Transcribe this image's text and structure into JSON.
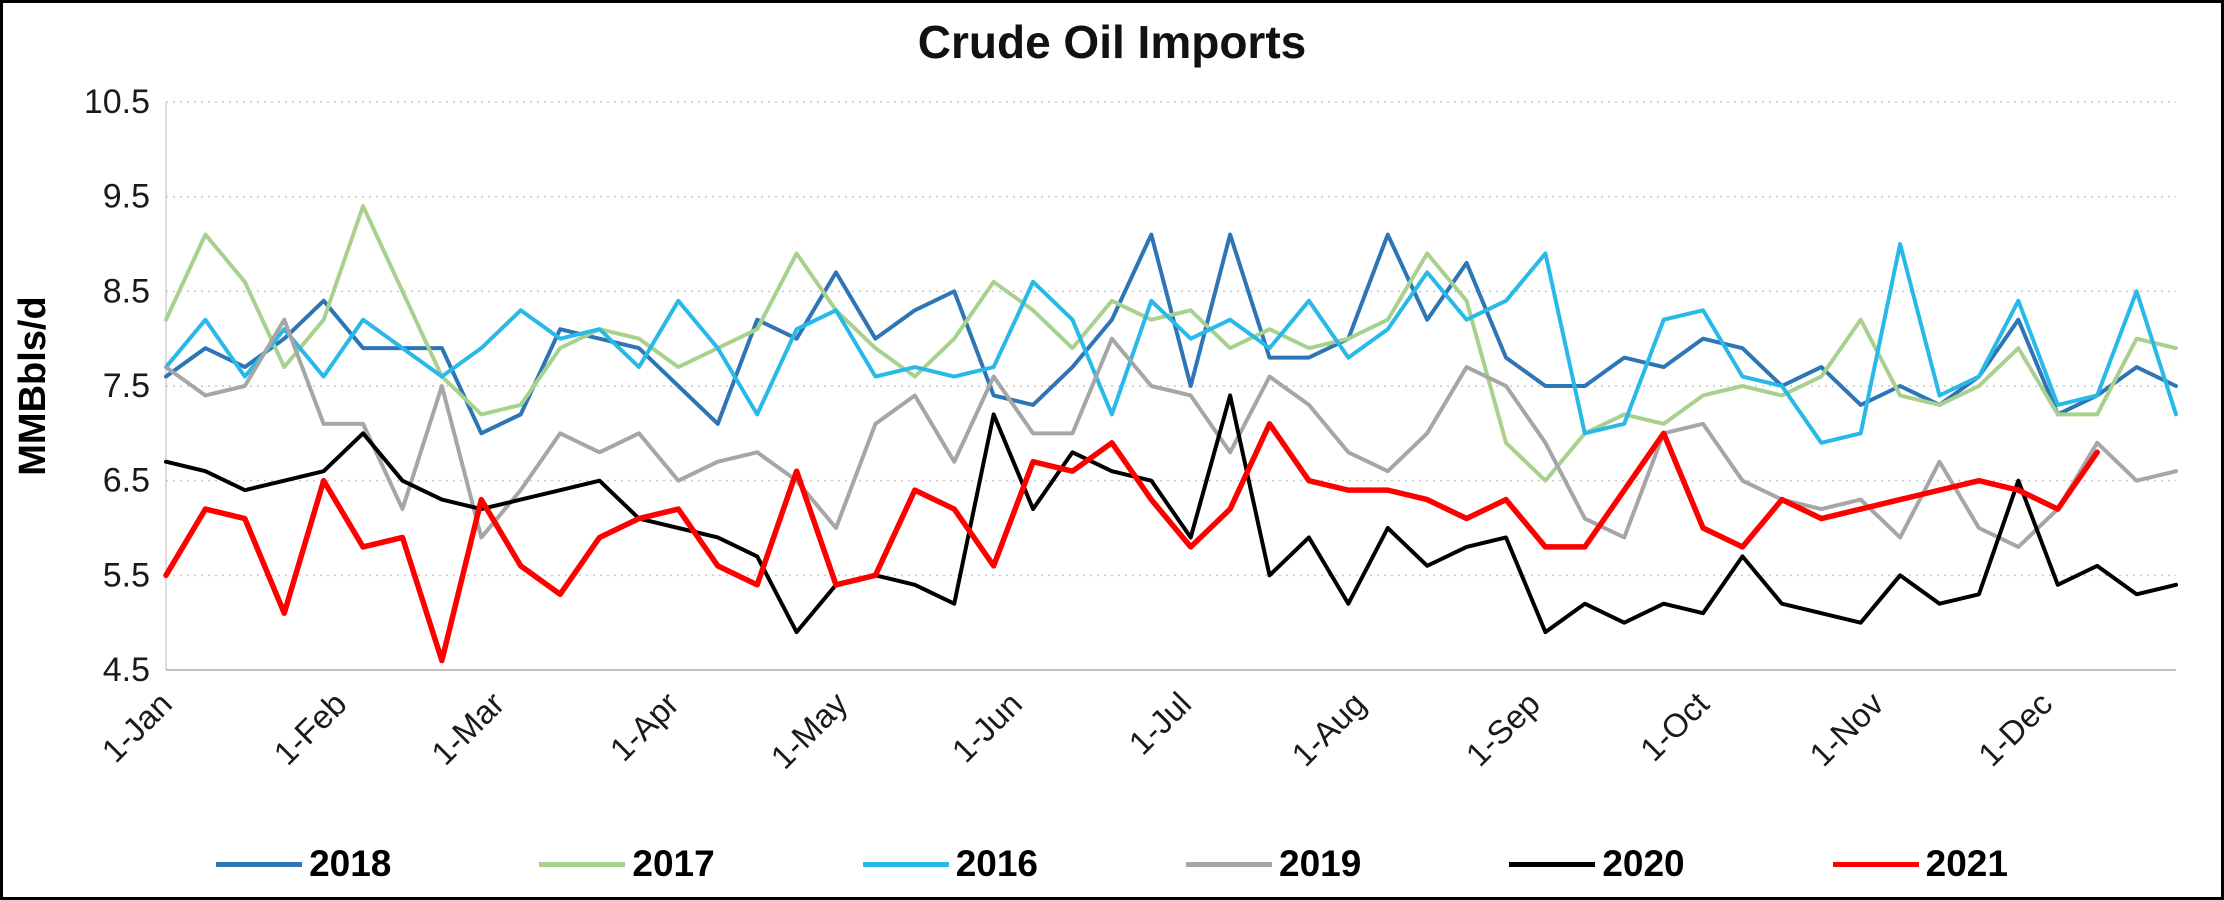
{
  "chart_data": {
    "type": "line",
    "title": "Crude Oil Imports",
    "xlabel": "",
    "ylabel": "MMBbls/d",
    "ylim": [
      4.5,
      10.5
    ],
    "ytick_step": 1.0,
    "grid": "horizontal-dotted",
    "legend_position": "bottom",
    "weeks_per_year": 52,
    "x_tick_labels": [
      "1-Jan",
      "1-Feb",
      "1-Mar",
      "1-Apr",
      "1-May",
      "1-Jun",
      "1-Jul",
      "1-Aug",
      "1-Sep",
      "1-Oct",
      "1-Nov",
      "1-Dec"
    ],
    "x_tick_week_positions": [
      0,
      4.43,
      8.43,
      12.86,
      17.14,
      21.57,
      25.86,
      30.29,
      34.71,
      39.0,
      43.43,
      47.71
    ],
    "series": [
      {
        "name": "2018",
        "color": "#2E75B6",
        "line_width": 4,
        "values": [
          7.6,
          7.9,
          7.7,
          8.0,
          8.4,
          7.9,
          7.9,
          7.9,
          7.0,
          7.2,
          8.1,
          8.0,
          7.9,
          7.5,
          7.1,
          8.2,
          8.0,
          8.7,
          8.0,
          8.3,
          8.5,
          7.4,
          7.3,
          7.7,
          8.2,
          9.1,
          7.5,
          9.1,
          7.8,
          7.8,
          8.0,
          9.1,
          8.2,
          8.8,
          7.8,
          7.5,
          7.5,
          7.8,
          7.7,
          8.0,
          7.9,
          7.5,
          7.7,
          7.3,
          7.5,
          7.3,
          7.6,
          8.2,
          7.2,
          7.4,
          7.7,
          7.5
        ]
      },
      {
        "name": "2017",
        "color": "#A9D18E",
        "line_width": 4,
        "values": [
          8.2,
          9.1,
          8.6,
          7.7,
          8.2,
          9.4,
          8.5,
          7.6,
          7.2,
          7.3,
          7.9,
          8.1,
          8.0,
          7.7,
          7.9,
          8.1,
          8.9,
          8.3,
          7.9,
          7.6,
          8.0,
          8.6,
          8.3,
          7.9,
          8.4,
          8.2,
          8.3,
          7.9,
          8.1,
          7.9,
          8.0,
          8.2,
          8.9,
          8.4,
          6.9,
          6.5,
          7.0,
          7.2,
          7.1,
          7.4,
          7.5,
          7.4,
          7.6,
          8.2,
          7.4,
          7.3,
          7.5,
          7.9,
          7.2,
          7.2,
          8.0,
          7.9
        ]
      },
      {
        "name": "2016",
        "color": "#29B9E8",
        "line_width": 4,
        "values": [
          7.7,
          8.2,
          7.6,
          8.1,
          7.6,
          8.2,
          7.9,
          7.6,
          7.9,
          8.3,
          8.0,
          8.1,
          7.7,
          8.4,
          7.9,
          7.2,
          8.1,
          8.3,
          7.6,
          7.7,
          7.6,
          7.7,
          8.6,
          8.2,
          7.2,
          8.4,
          8.0,
          8.2,
          7.9,
          8.4,
          7.8,
          8.1,
          8.7,
          8.2,
          8.4,
          8.9,
          7.0,
          7.1,
          8.2,
          8.3,
          7.6,
          7.5,
          6.9,
          7.0,
          9.0,
          7.4,
          7.6,
          8.4,
          7.3,
          7.4,
          8.5,
          7.2
        ]
      },
      {
        "name": "2019",
        "color": "#A6A6A6",
        "line_width": 4,
        "values": [
          7.7,
          7.4,
          7.5,
          8.2,
          7.1,
          7.1,
          6.2,
          7.5,
          5.9,
          6.4,
          7.0,
          6.8,
          7.0,
          6.5,
          6.7,
          6.8,
          6.5,
          6.0,
          7.1,
          7.4,
          6.7,
          7.6,
          7.0,
          7.0,
          8.0,
          7.5,
          7.4,
          6.8,
          7.6,
          7.3,
          6.8,
          6.6,
          7.0,
          7.7,
          7.5,
          6.9,
          6.1,
          5.9,
          7.0,
          7.1,
          6.5,
          6.3,
          6.2,
          6.3,
          5.9,
          6.7,
          6.0,
          5.8,
          6.2,
          6.9,
          6.5,
          6.6
        ]
      },
      {
        "name": "2020",
        "color": "#000000",
        "line_width": 4,
        "values": [
          6.7,
          6.6,
          6.4,
          6.5,
          6.6,
          7.0,
          6.5,
          6.3,
          6.2,
          6.3,
          6.4,
          6.5,
          6.1,
          6.0,
          5.9,
          5.7,
          4.9,
          5.4,
          5.5,
          5.4,
          5.2,
          7.2,
          6.2,
          6.8,
          6.6,
          6.5,
          5.9,
          7.4,
          5.5,
          5.9,
          5.2,
          6.0,
          5.6,
          5.8,
          5.9,
          4.9,
          5.2,
          5.0,
          5.2,
          5.1,
          5.7,
          5.2,
          5.1,
          5.0,
          5.5,
          5.2,
          5.3,
          6.5,
          5.4,
          5.6,
          5.3,
          5.4
        ]
      },
      {
        "name": "2021",
        "color": "#FF0000",
        "line_width": 5.5,
        "values": [
          5.5,
          6.2,
          6.1,
          5.1,
          6.5,
          5.8,
          5.9,
          4.6,
          6.3,
          5.6,
          5.3,
          5.9,
          6.1,
          6.2,
          5.6,
          5.4,
          6.6,
          5.4,
          5.5,
          6.4,
          6.2,
          5.6,
          6.7,
          6.6,
          6.9,
          6.3,
          5.8,
          6.2,
          7.1,
          6.5,
          6.4,
          6.4,
          6.3,
          6.1,
          6.3,
          5.8,
          5.8,
          6.4,
          7.0,
          6.0,
          5.8,
          6.3,
          6.1,
          6.2,
          6.3,
          6.4,
          6.5,
          6.4,
          6.2,
          6.8
        ]
      }
    ]
  }
}
